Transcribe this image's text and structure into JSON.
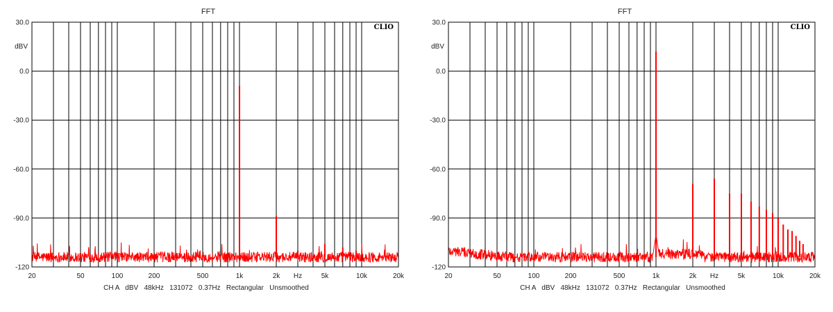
{
  "chart_data": [
    {
      "type": "line",
      "title": "FFT",
      "brand": "CLIO",
      "ylabel": "dBV",
      "xlabel": "Hz",
      "footer": "CH A   dBV   48kHz   131072   0.37Hz   Rectangular   Unsmoothed",
      "xscale": "log",
      "xlim": [
        20,
        20000
      ],
      "ylim": [
        -120,
        30
      ],
      "yticks": [
        30,
        0,
        -30,
        -60,
        -90,
        -120
      ],
      "ytick_labels": [
        "30.0",
        "0.0",
        "-30.0",
        "-60.0",
        "-90.0",
        "-120"
      ],
      "xticks": [
        20,
        50,
        100,
        200,
        500,
        1000,
        2000,
        5000,
        10000,
        20000
      ],
      "xtick_labels": [
        "20",
        "50",
        "100",
        "200",
        "500",
        "1k",
        "2k",
        "5k",
        "10k",
        "20k"
      ],
      "grid": true,
      "color": "#ff0000",
      "noise_floor_dbv": -114,
      "series": [
        {
          "peaks": [
            {
              "x": 1000,
              "y": -9
            },
            {
              "x": 2000,
              "y": -89
            },
            {
              "x": 3000,
              "y": -110
            },
            {
              "x": 5000,
              "y": -106
            },
            {
              "x": 7000,
              "y": -108
            },
            {
              "x": 9000,
              "y": -110
            }
          ]
        }
      ]
    },
    {
      "type": "line",
      "title": "FFT",
      "brand": "CLIO",
      "ylabel": "dBV",
      "xlabel": "Hz",
      "footer": "CH A   dBV   48kHz   131072   0.37Hz   Rectangular   Unsmoothed",
      "xscale": "log",
      "xlim": [
        20,
        20000
      ],
      "ylim": [
        -120,
        30
      ],
      "yticks": [
        30,
        0,
        -30,
        -60,
        -90,
        -120
      ],
      "ytick_labels": [
        "30.0",
        "0.0",
        "-30.0",
        "-60.0",
        "-90.0",
        "-120"
      ],
      "xticks": [
        20,
        50,
        100,
        200,
        500,
        1000,
        2000,
        5000,
        10000,
        20000
      ],
      "xtick_labels": [
        "20",
        "50",
        "100",
        "200",
        "500",
        "1k",
        "2k",
        "5k",
        "10k",
        "20k"
      ],
      "grid": true,
      "color": "#ff0000",
      "noise_floor_dbv": -114,
      "series": [
        {
          "peaks": [
            {
              "x": 1000,
              "y": 12
            },
            {
              "x": 2000,
              "y": -69
            },
            {
              "x": 3000,
              "y": -66
            },
            {
              "x": 4000,
              "y": -75
            },
            {
              "x": 5000,
              "y": -75
            },
            {
              "x": 6000,
              "y": -80
            },
            {
              "x": 7000,
              "y": -83
            },
            {
              "x": 8000,
              "y": -85
            },
            {
              "x": 9000,
              "y": -87
            },
            {
              "x": 10000,
              "y": -90
            },
            {
              "x": 11000,
              "y": -94
            },
            {
              "x": 12000,
              "y": -97
            },
            {
              "x": 13000,
              "y": -98
            },
            {
              "x": 14000,
              "y": -101
            },
            {
              "x": 15000,
              "y": -104
            },
            {
              "x": 16000,
              "y": -106
            }
          ]
        }
      ]
    }
  ]
}
